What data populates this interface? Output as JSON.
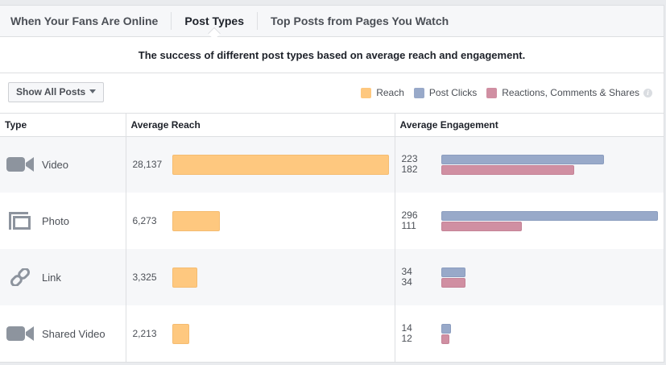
{
  "tabs": [
    {
      "label": "When Your Fans Are Online",
      "active": false
    },
    {
      "label": "Post Types",
      "active": true
    },
    {
      "label": "Top Posts from Pages You Watch",
      "active": false
    }
  ],
  "subtitle": "The success of different post types based on average reach and engagement.",
  "filter": {
    "label": "Show All Posts"
  },
  "legend": [
    {
      "label": "Reach",
      "color": "#fec87f"
    },
    {
      "label": "Post Clicks",
      "color": "#98a9c9"
    },
    {
      "label": "Reactions, Comments & Shares",
      "color": "#d08fa2"
    }
  ],
  "columns": [
    "Type",
    "Average Reach",
    "Average Engagement"
  ],
  "rows": [
    {
      "type": "Video",
      "icon": "video-camera-icon",
      "reach": "28,137",
      "reach_value": 28137,
      "clicks": "223",
      "clicks_value": 223,
      "rcs": "182",
      "rcs_value": 182
    },
    {
      "type": "Photo",
      "icon": "photo-icon",
      "reach": "6,273",
      "reach_value": 6273,
      "clicks": "296",
      "clicks_value": 296,
      "rcs": "111",
      "rcs_value": 111
    },
    {
      "type": "Link",
      "icon": "link-icon",
      "reach": "3,325",
      "reach_value": 3325,
      "clicks": "34",
      "clicks_value": 34,
      "rcs": "34",
      "rcs_value": 34
    },
    {
      "type": "Shared Video",
      "icon": "video-camera-icon",
      "reach": "2,213",
      "reach_value": 2213,
      "clicks": "14",
      "clicks_value": 14,
      "rcs": "12",
      "rcs_value": 12
    }
  ]
}
